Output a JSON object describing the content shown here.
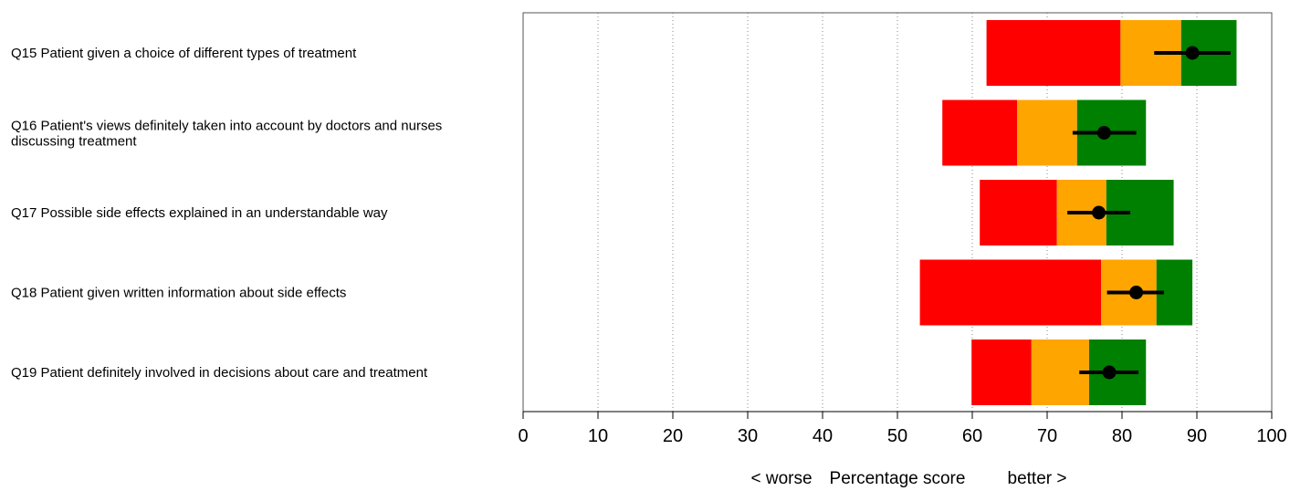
{
  "chart_data": {
    "type": "bar",
    "subtype": "stacked-range-with-point-and-interval",
    "xlabel_worse": "< worse",
    "xlabel": "Percentage score",
    "xlabel_better": "better >",
    "xlim": [
      0,
      100
    ],
    "xticks": [
      "0",
      "10",
      "20",
      "30",
      "40",
      "50",
      "60",
      "70",
      "80",
      "90",
      "100"
    ],
    "grid": "vertical dotted",
    "colors": {
      "red": "#ff0000",
      "amber": "#ffa500",
      "green": "#008000",
      "point": "#000000"
    },
    "items": [
      {
        "label_lines": [
          "Q15 Patient given a choice of different types of treatment"
        ],
        "red": [
          61.9,
          79.8
        ],
        "amber": [
          79.8,
          87.9
        ],
        "green": [
          87.9,
          95.3
        ],
        "point": 89.4,
        "ci": [
          84.3,
          94.5
        ]
      },
      {
        "label_lines": [
          "Q16 Patient's views definitely taken into account by doctors and nurses",
          "discussing treatment"
        ],
        "red": [
          56.0,
          66.0
        ],
        "amber": [
          66.0,
          74.0
        ],
        "green": [
          74.0,
          83.2
        ],
        "point": 77.6,
        "ci": [
          73.4,
          81.9
        ]
      },
      {
        "label_lines": [
          "Q17 Possible side effects explained in an understandable way"
        ],
        "red": [
          61.0,
          71.3
        ],
        "amber": [
          71.3,
          77.9
        ],
        "green": [
          77.9,
          86.9
        ],
        "point": 76.9,
        "ci": [
          72.7,
          81.1
        ]
      },
      {
        "label_lines": [
          "Q18 Patient given written information about side effects"
        ],
        "red": [
          53.0,
          77.2
        ],
        "amber": [
          77.2,
          84.6
        ],
        "green": [
          84.6,
          89.4
        ],
        "point": 81.9,
        "ci": [
          78.0,
          85.6
        ]
      },
      {
        "label_lines": [
          "Q19 Patient definitely involved in decisions about care and treatment"
        ],
        "red": [
          59.9,
          67.9
        ],
        "amber": [
          67.9,
          75.6
        ],
        "green": [
          75.6,
          83.2
        ],
        "point": 78.3,
        "ci": [
          74.3,
          82.2
        ]
      }
    ]
  }
}
